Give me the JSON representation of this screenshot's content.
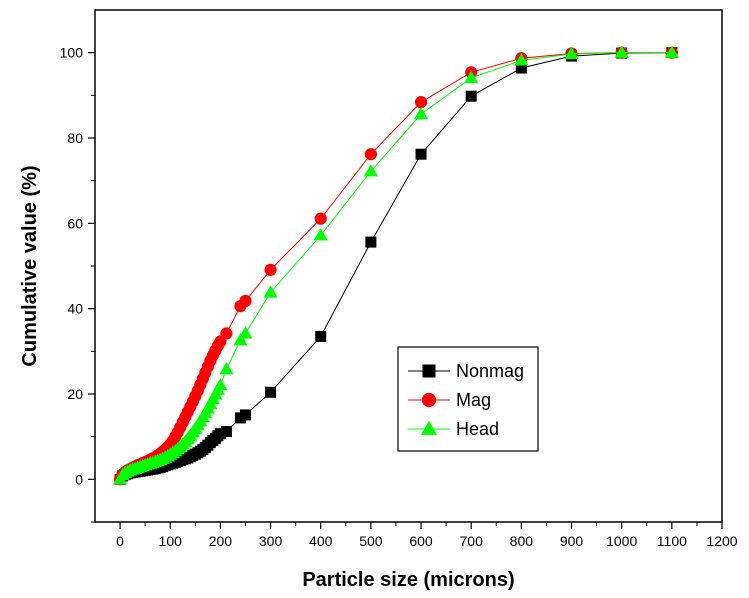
{
  "chart_data": {
    "type": "line",
    "title": "",
    "xlabel": "Particle size (microns)",
    "ylabel": "Cumulative value (%)",
    "xlim": [
      -50,
      1200
    ],
    "ylim": [
      -10,
      110
    ],
    "xticks": [
      0,
      100,
      200,
      300,
      400,
      500,
      600,
      700,
      800,
      900,
      1000,
      1100,
      1200
    ],
    "yticks": [
      0,
      20,
      40,
      60,
      80,
      100
    ],
    "grid": false,
    "legend_position": "lower-right",
    "series": [
      {
        "name": "Nonmag",
        "color": "#000000",
        "marker": "square",
        "x": [
          0,
          5,
          10,
          15,
          20,
          25,
          30,
          35,
          40,
          45,
          50,
          55,
          60,
          65,
          70,
          75,
          80,
          85,
          90,
          95,
          100,
          105,
          110,
          115,
          120,
          125,
          130,
          135,
          140,
          145,
          150,
          155,
          160,
          165,
          170,
          175,
          180,
          185,
          190,
          195,
          200,
          212,
          240,
          250,
          300,
          400,
          500,
          600,
          700,
          800,
          900,
          1000,
          1100
        ],
        "y": [
          0,
          0.8,
          1.1,
          1.3,
          1.5,
          1.6,
          1.7,
          1.8,
          1.9,
          2.0,
          2.1,
          2.2,
          2.3,
          2.4,
          2.5,
          2.7,
          2.8,
          3.0,
          3.2,
          3.4,
          3.6,
          3.8,
          4.0,
          4.2,
          4.4,
          4.6,
          4.8,
          5.0,
          5.3,
          5.6,
          5.9,
          6.2,
          6.6,
          7.0,
          7.5,
          8.0,
          8.6,
          9.1,
          9.6,
          10.2,
          10.7,
          11.2,
          14.4,
          15.1,
          20.4,
          33.5,
          55.6,
          76.2,
          89.8,
          96.4,
          99.2,
          99.9,
          100
        ]
      },
      {
        "name": "Mag",
        "color": "#ff0000",
        "marker": "circle",
        "x": [
          0,
          5,
          10,
          15,
          20,
          25,
          30,
          35,
          40,
          45,
          50,
          55,
          60,
          65,
          70,
          75,
          80,
          85,
          90,
          95,
          100,
          105,
          110,
          115,
          120,
          125,
          130,
          135,
          140,
          145,
          150,
          155,
          160,
          165,
          170,
          175,
          180,
          185,
          190,
          195,
          200,
          212,
          240,
          250,
          300,
          400,
          500,
          600,
          700,
          800,
          900,
          1000,
          1100
        ],
        "y": [
          0,
          1.2,
          1.7,
          2.1,
          2.4,
          2.7,
          3.0,
          3.3,
          3.5,
          3.8,
          4.0,
          4.3,
          4.6,
          4.9,
          5.2,
          5.6,
          6.0,
          6.5,
          7.0,
          7.6,
          8.2,
          9.0,
          10.0,
          11.0,
          12.2,
          13.4,
          14.6,
          15.8,
          17.0,
          18.2,
          19.5,
          20.8,
          22.2,
          23.6,
          25.0,
          26.4,
          27.8,
          29.0,
          30.2,
          31.3,
          32.3,
          34.2,
          40.6,
          41.8,
          49.1,
          61.1,
          76.2,
          88.4,
          95.4,
          98.7,
          99.8,
          100,
          100
        ]
      },
      {
        "name": "Head",
        "color": "#00ff00",
        "marker": "triangle",
        "x": [
          0,
          5,
          10,
          15,
          20,
          25,
          30,
          35,
          40,
          45,
          50,
          55,
          60,
          65,
          70,
          75,
          80,
          85,
          90,
          95,
          100,
          105,
          110,
          115,
          120,
          125,
          130,
          135,
          140,
          145,
          150,
          155,
          160,
          165,
          170,
          175,
          180,
          185,
          190,
          195,
          200,
          212,
          240,
          250,
          300,
          400,
          500,
          600,
          700,
          800,
          900,
          1000,
          1100
        ],
        "y": [
          0,
          1.0,
          1.5,
          1.8,
          2.1,
          2.3,
          2.5,
          2.7,
          2.9,
          3.1,
          3.3,
          3.5,
          3.7,
          3.9,
          4.1,
          4.3,
          4.5,
          4.8,
          5.1,
          5.4,
          5.8,
          6.2,
          6.6,
          7.1,
          7.6,
          8.2,
          8.8,
          9.5,
          10.2,
          11.0,
          11.8,
          12.7,
          13.6,
          14.6,
          15.6,
          16.6,
          17.7,
          18.8,
          19.9,
          21.0,
          22.1,
          25.8,
          32.6,
          34.2,
          43.8,
          57.2,
          72.2,
          85.6,
          94.1,
          98.2,
          99.7,
          100,
          100
        ]
      }
    ]
  }
}
